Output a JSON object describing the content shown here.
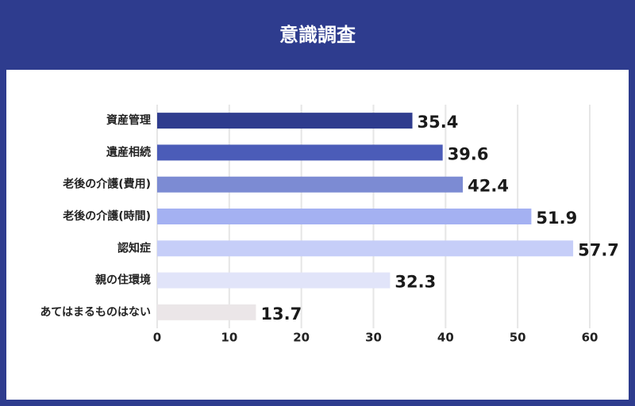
{
  "chart_data": {
    "type": "bar",
    "orientation": "horizontal",
    "title": "意識調査",
    "categories": [
      "資産管理",
      "遺産相続",
      "老後の介護(費用)",
      "老後の介護(時間)",
      "認知症",
      "親の住環境",
      "あてはまるものはない"
    ],
    "values": [
      35.4,
      39.6,
      42.4,
      51.9,
      57.7,
      32.3,
      13.7
    ],
    "colors": [
      "#2f3c8e",
      "#4b5cb8",
      "#7c8bd3",
      "#a4b1f2",
      "#c6cef8",
      "#e1e4f9",
      "#ebe6e8"
    ],
    "xlim": [
      0,
      60
    ],
    "xticks": [
      0,
      10,
      20,
      30,
      40,
      50,
      60
    ],
    "grid": true
  }
}
